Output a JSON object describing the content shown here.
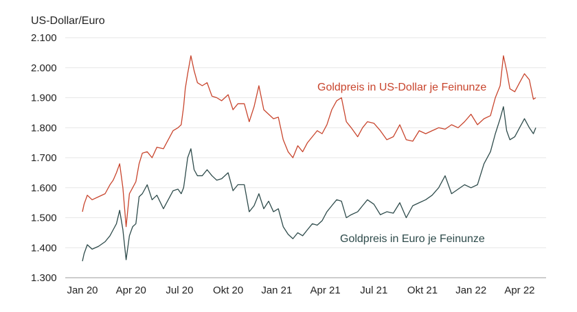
{
  "chart_data": {
    "type": "line",
    "ylabel": "US-Dollar/Euro",
    "ylim": [
      1300,
      2100
    ],
    "yticks": [
      "1.300",
      "1.400",
      "1.500",
      "1.600",
      "1.700",
      "1.800",
      "1.900",
      "2.000",
      "2.100"
    ],
    "ytick_values": [
      1300,
      1400,
      1500,
      1600,
      1700,
      1800,
      1900,
      2000,
      2100
    ],
    "xticks": [
      "Jan 20",
      "Apr 20",
      "Jul 20",
      "Okt 20",
      "Jan 21",
      "Apr 21",
      "Jul 21",
      "Okt 21",
      "Jan 22",
      "Apr 22"
    ],
    "xlim_months": [
      0,
      28
    ],
    "grid": true,
    "series": [
      {
        "name": "Goldpreis in US-Dollar je Feinunze",
        "color": "#c8442c",
        "x": [
          0,
          0.1,
          0.3,
          0.6,
          1.0,
          1.4,
          1.7,
          1.9,
          2.1,
          2.3,
          2.5,
          2.7,
          2.9,
          3.1,
          3.3,
          3.5,
          3.7,
          4.0,
          4.3,
          4.6,
          5.0,
          5.3,
          5.6,
          5.9,
          6.1,
          6.25,
          6.35,
          6.5,
          6.7,
          6.9,
          7.1,
          7.4,
          7.7,
          8.0,
          8.3,
          8.6,
          9.0,
          9.3,
          9.6,
          10.0,
          10.3,
          10.6,
          10.9,
          11.2,
          11.5,
          11.8,
          12.1,
          12.4,
          12.7,
          13.0,
          13.3,
          13.6,
          13.9,
          14.2,
          14.5,
          14.8,
          15.1,
          15.4,
          15.7,
          16.0,
          16.3,
          16.6,
          17.0,
          17.3,
          17.6,
          18.0,
          18.4,
          18.8,
          19.2,
          19.6,
          20.0,
          20.4,
          20.8,
          21.2,
          21.6,
          22.0,
          22.4,
          22.8,
          23.2,
          23.6,
          24.0,
          24.4,
          24.8,
          25.2,
          25.5,
          25.8,
          26.0,
          26.2,
          26.4,
          26.7,
          27.0,
          27.3,
          27.6,
          27.85,
          28.0
        ],
        "values": [
          1520,
          1545,
          1575,
          1560,
          1570,
          1580,
          1610,
          1625,
          1650,
          1680,
          1600,
          1470,
          1580,
          1600,
          1620,
          1680,
          1715,
          1720,
          1700,
          1735,
          1730,
          1760,
          1790,
          1800,
          1810,
          1870,
          1930,
          1980,
          2040,
          1990,
          1950,
          1940,
          1950,
          1905,
          1900,
          1890,
          1910,
          1860,
          1880,
          1880,
          1820,
          1870,
          1940,
          1860,
          1845,
          1830,
          1835,
          1760,
          1720,
          1700,
          1740,
          1720,
          1750,
          1770,
          1790,
          1780,
          1810,
          1860,
          1890,
          1900,
          1820,
          1800,
          1770,
          1800,
          1820,
          1815,
          1790,
          1760,
          1770,
          1810,
          1760,
          1755,
          1790,
          1780,
          1790,
          1800,
          1795,
          1810,
          1800,
          1820,
          1845,
          1810,
          1830,
          1840,
          1900,
          1940,
          2040,
          1990,
          1930,
          1920,
          1950,
          1980,
          1960,
          1895,
          1900
        ]
      },
      {
        "name": "Goldpreis in Euro je Feinunze",
        "color": "#2d4a4a",
        "x": [
          0,
          0.1,
          0.3,
          0.6,
          1.0,
          1.4,
          1.7,
          1.9,
          2.1,
          2.3,
          2.5,
          2.7,
          2.9,
          3.1,
          3.3,
          3.5,
          3.7,
          4.0,
          4.3,
          4.6,
          5.0,
          5.3,
          5.6,
          5.9,
          6.1,
          6.25,
          6.35,
          6.5,
          6.7,
          6.9,
          7.1,
          7.4,
          7.7,
          8.0,
          8.3,
          8.6,
          9.0,
          9.3,
          9.6,
          10.0,
          10.3,
          10.6,
          10.9,
          11.2,
          11.5,
          11.8,
          12.1,
          12.4,
          12.7,
          13.0,
          13.3,
          13.6,
          13.9,
          14.2,
          14.5,
          14.8,
          15.1,
          15.4,
          15.7,
          16.0,
          16.3,
          16.6,
          17.0,
          17.3,
          17.6,
          18.0,
          18.4,
          18.8,
          19.2,
          19.6,
          20.0,
          20.4,
          20.8,
          21.2,
          21.6,
          22.0,
          22.4,
          22.8,
          23.2,
          23.6,
          24.0,
          24.4,
          24.8,
          25.2,
          25.5,
          25.8,
          26.0,
          26.2,
          26.4,
          26.7,
          27.0,
          27.3,
          27.6,
          27.85,
          28.0
        ],
        "values": [
          1355,
          1380,
          1410,
          1395,
          1405,
          1420,
          1440,
          1460,
          1480,
          1525,
          1460,
          1360,
          1440,
          1470,
          1480,
          1570,
          1580,
          1610,
          1560,
          1575,
          1530,
          1560,
          1590,
          1595,
          1580,
          1600,
          1640,
          1700,
          1730,
          1660,
          1640,
          1640,
          1660,
          1640,
          1625,
          1630,
          1650,
          1590,
          1610,
          1610,
          1520,
          1540,
          1580,
          1530,
          1555,
          1520,
          1530,
          1470,
          1445,
          1430,
          1450,
          1440,
          1460,
          1480,
          1475,
          1490,
          1520,
          1540,
          1560,
          1555,
          1500,
          1510,
          1520,
          1540,
          1560,
          1545,
          1510,
          1520,
          1515,
          1550,
          1500,
          1540,
          1550,
          1560,
          1575,
          1600,
          1640,
          1580,
          1595,
          1610,
          1600,
          1610,
          1680,
          1720,
          1780,
          1830,
          1870,
          1790,
          1760,
          1770,
          1800,
          1830,
          1800,
          1780,
          1800
        ]
      }
    ]
  }
}
